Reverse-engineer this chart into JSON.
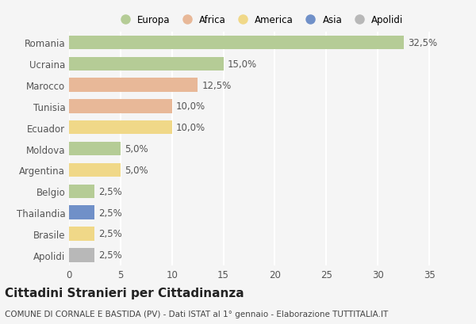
{
  "countries": [
    "Romania",
    "Ucraina",
    "Marocco",
    "Tunisia",
    "Ecuador",
    "Moldova",
    "Argentina",
    "Belgio",
    "Thailandia",
    "Brasile",
    "Apolidi"
  ],
  "values": [
    32.5,
    15.0,
    12.5,
    10.0,
    10.0,
    5.0,
    5.0,
    2.5,
    2.5,
    2.5,
    2.5
  ],
  "bar_colors": [
    "#b5cc96",
    "#b5cc96",
    "#e8b898",
    "#e8b898",
    "#f0d888",
    "#b5cc96",
    "#f0d888",
    "#b5cc96",
    "#7090c8",
    "#f0d888",
    "#b8b8b8"
  ],
  "legend_categories": [
    "Europa",
    "Africa",
    "America",
    "Asia",
    "Apolidi"
  ],
  "legend_colors": [
    "#b5cc96",
    "#e8b898",
    "#f0d888",
    "#7090c8",
    "#b8b8b8"
  ],
  "title": "Cittadini Stranieri per Cittadinanza",
  "subtitle": "COMUNE DI CORNALE E BASTIDA (PV) - Dati ISTAT al 1° gennaio - Elaborazione TUTTITALIA.IT",
  "xlim": [
    0,
    37
  ],
  "xticks": [
    0,
    5,
    10,
    15,
    20,
    25,
    30,
    35
  ],
  "background_color": "#f5f5f5",
  "grid_color": "#ffffff",
  "bar_label_color": "#555555",
  "tick_label_color": "#555555",
  "label_fontsize": 8.5,
  "title_fontsize": 11,
  "subtitle_fontsize": 7.5
}
